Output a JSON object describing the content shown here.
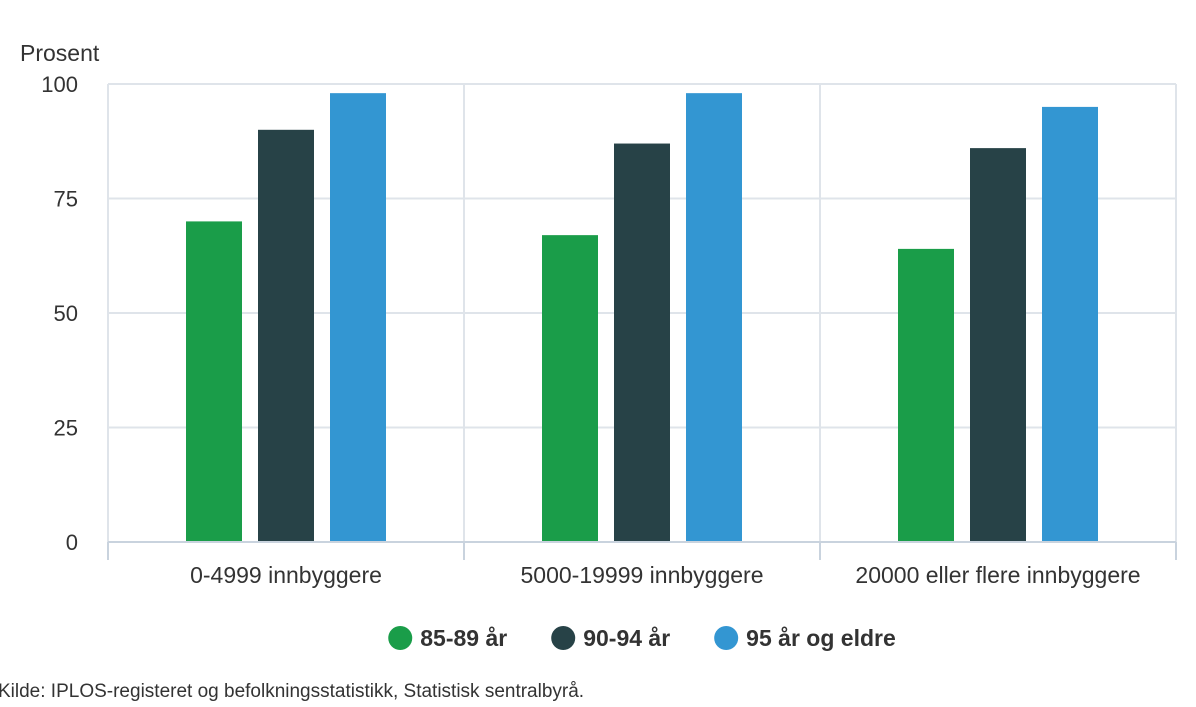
{
  "chart_data": {
    "type": "bar",
    "ylabel": "Prosent",
    "ylim": [
      0,
      100
    ],
    "yticks": [
      0,
      25,
      50,
      75,
      100
    ],
    "grid": true,
    "legend_position": "bottom",
    "categories": [
      "0-4999 innbyggere",
      "5000-19999 innbyggere",
      "20000 eller flere innbyggere"
    ],
    "series": [
      {
        "name": "85-89 år",
        "color": "#1a9d49",
        "values": [
          70,
          67,
          64
        ]
      },
      {
        "name": "90-94 år",
        "color": "#274247",
        "values": [
          90,
          87,
          86
        ]
      },
      {
        "name": "95 år og eldre",
        "color": "#3396d2",
        "values": [
          98,
          98,
          95
        ]
      }
    ],
    "source": "Kilde: IPLOS-registeret og befolkningsstatistikk, Statistisk sentralbyrå."
  }
}
